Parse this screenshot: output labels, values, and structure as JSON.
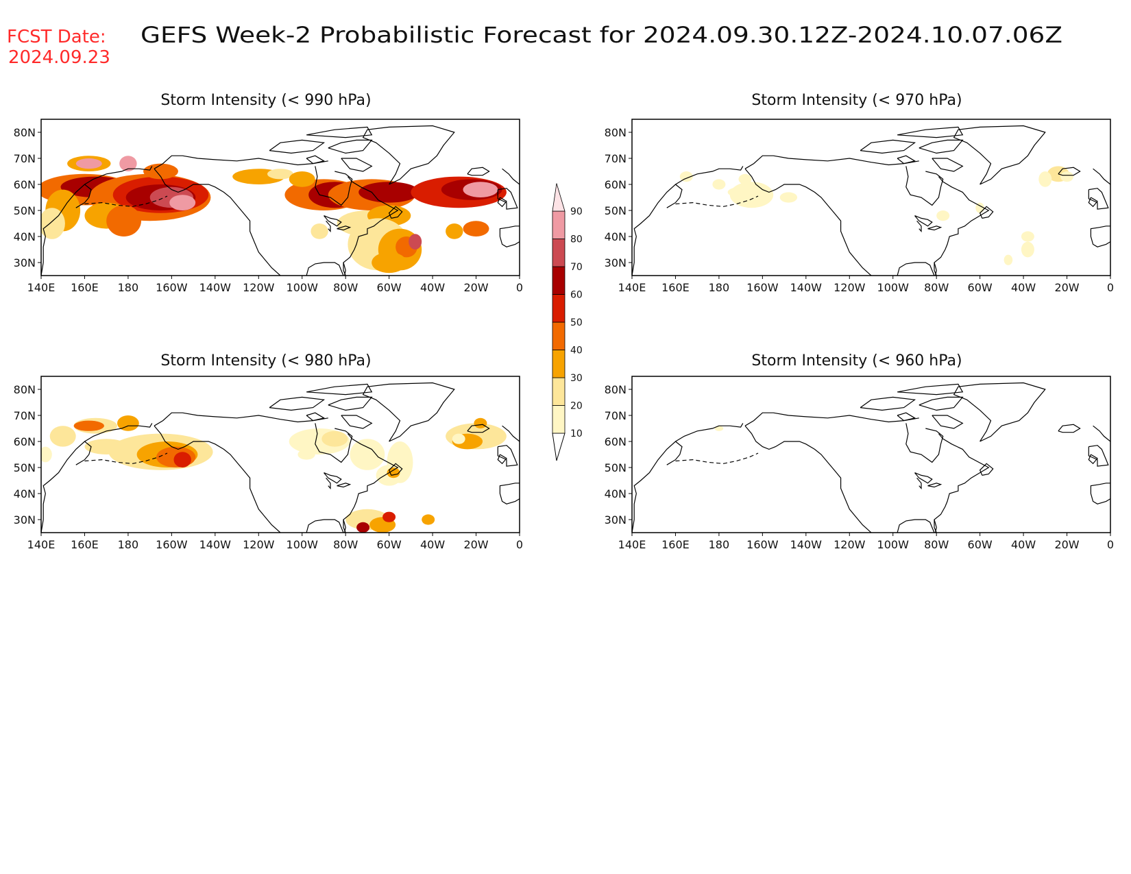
{
  "header": {
    "fcst_label": "FCST Date:",
    "fcst_date": "2024.09.23",
    "title": "GEFS Week-2 Probabilistic Forecast for 2024.09.30.12Z-2024.10.07.06Z"
  },
  "axes": {
    "lon_ticks": [
      "140E",
      "160E",
      "180",
      "160W",
      "140W",
      "120W",
      "100W",
      "80W",
      "60W",
      "40W",
      "20W",
      "0"
    ],
    "lat_ticks": [
      "80N",
      "70N",
      "60N",
      "50N",
      "40N",
      "30N"
    ],
    "lon_range_deg": [
      140,
      360
    ],
    "lat_range_deg": [
      25,
      85
    ]
  },
  "panels": [
    {
      "title": "Storm Intensity (< 990 hPa)",
      "intensity": "high"
    },
    {
      "title": "Storm Intensity (< 970 hPa)",
      "intensity": "low"
    },
    {
      "title": "Storm Intensity (< 980 hPa)",
      "intensity": "medium"
    },
    {
      "title": "Storm Intensity (< 960 hPa)",
      "intensity": "none"
    }
  ],
  "colorbar": {
    "levels": [
      "10",
      "20",
      "30",
      "40",
      "50",
      "60",
      "70",
      "80",
      "90"
    ],
    "colors": [
      "#fff6c4",
      "#fde69a",
      "#f7a300",
      "#f26a00",
      "#d91d00",
      "#a80000",
      "#cc4a52",
      "#ef9aa3",
      "#fde3e6"
    ]
  }
}
